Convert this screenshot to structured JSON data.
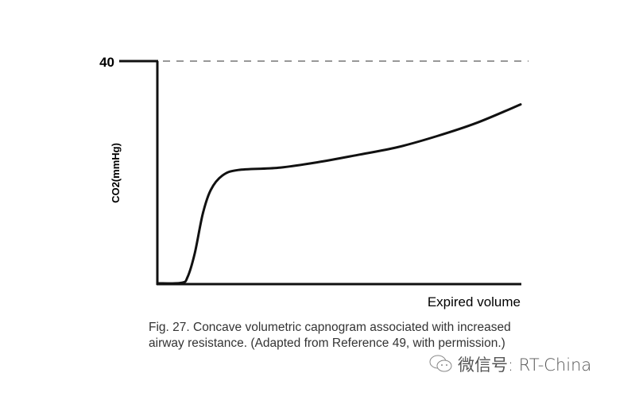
{
  "chart_data": {
    "type": "line",
    "title": "",
    "xlabel": "Expired volume",
    "ylabel": "CO2(mmHg)",
    "ylim": [
      0,
      40
    ],
    "xlim": [
      0,
      1
    ],
    "y_ticks": [
      "40"
    ],
    "reference_line": {
      "y": 40,
      "style": "dashed"
    },
    "grid": false,
    "series": [
      {
        "x": [
          0,
          0.066,
          0.083,
          0.103,
          0.125,
          0.147,
          0.179,
          0.223,
          0.333,
          0.442,
          0.551,
          0.661,
          0.77,
          0.88,
          1.0
        ],
        "y": [
          0,
          0.1,
          1.1,
          5.4,
          12.5,
          16.8,
          19.4,
          20.4,
          20.8,
          21.8,
          23.1,
          24.5,
          26.5,
          28.9,
          32.2
        ]
      }
    ]
  },
  "caption": {
    "line1": "Fig. 27. Concave volumetric capnogram associated with increased",
    "line2": "airway resistance. (Adapted from Reference 49, with permission.)"
  },
  "watermark": {
    "text": "微信号: RT-China",
    "icon": "wechat-icon"
  }
}
